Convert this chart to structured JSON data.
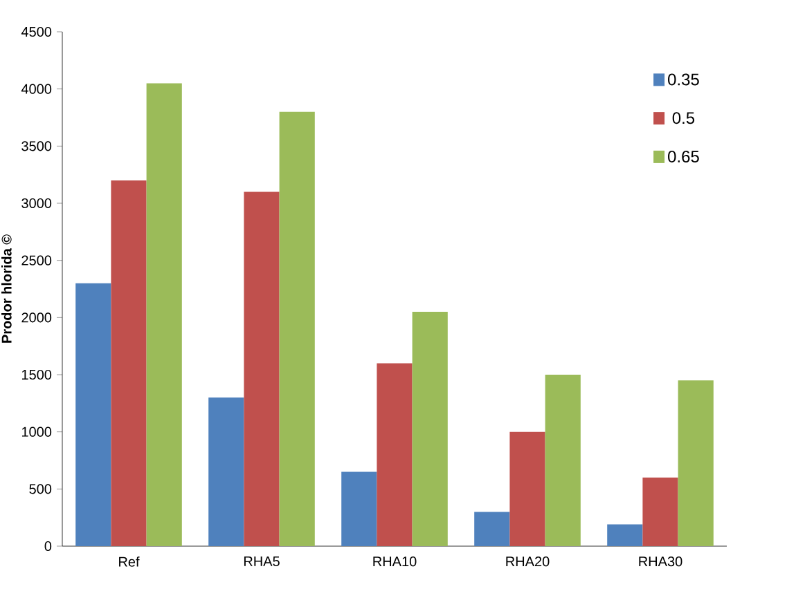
{
  "chart_data": {
    "type": "bar",
    "ylabel": "Prodor hlorida ©",
    "categories": [
      "Ref",
      "RHA5",
      "RHA10",
      "RHA20",
      "RHA30"
    ],
    "series": [
      {
        "name": "0.35",
        "color": "#4f81bd",
        "values": [
          2300,
          1300,
          650,
          300,
          190
        ]
      },
      {
        "name": "0.5",
        "color": "#c0504d",
        "values": [
          3200,
          3100,
          1600,
          1000,
          600
        ]
      },
      {
        "name": "0.65",
        "color": "#9bbb59",
        "values": [
          4050,
          3800,
          2050,
          1500,
          1450
        ]
      }
    ],
    "ylim": [
      0,
      4500
    ],
    "yticks": [
      0,
      500,
      1000,
      1500,
      2000,
      2500,
      3000,
      3500,
      4000,
      4500
    ],
    "grid": false,
    "legend": "top right"
  }
}
